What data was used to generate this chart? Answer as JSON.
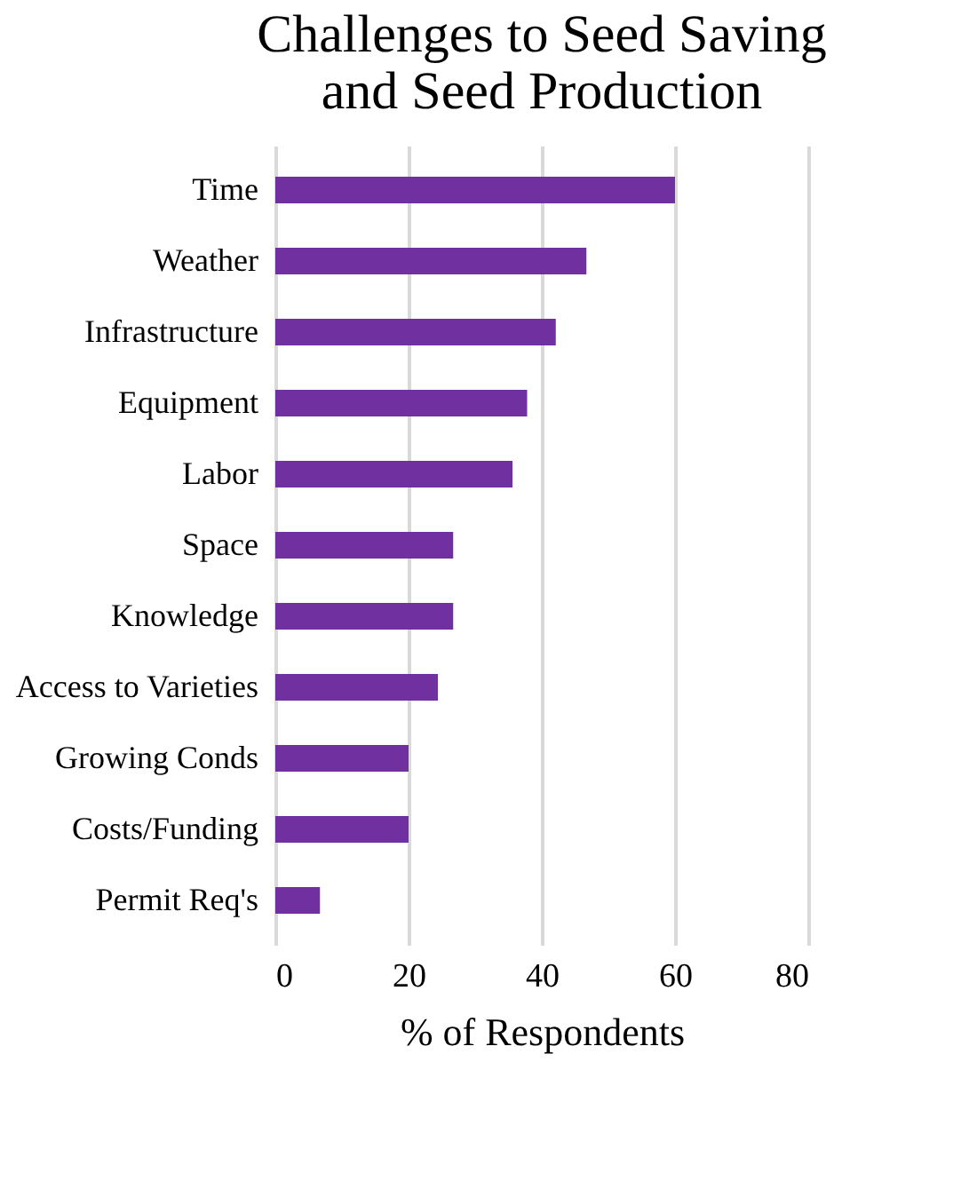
{
  "chart_data": {
    "type": "bar",
    "orientation": "horizontal",
    "title": [
      "Challenges to Seed Saving",
      "and Seed Production"
    ],
    "xlabel": "% of Respondents",
    "categories": [
      "Time",
      "Weather",
      "Infrastructure",
      "Equipment",
      "Labor",
      "Space",
      "Knowledge",
      "Access to Varieties",
      "Growing Conds",
      "Costs/Funding",
      "Permit Req's"
    ],
    "values": [
      60,
      46.7,
      42.1,
      37.8,
      35.6,
      26.7,
      26.7,
      24.4,
      20,
      20,
      6.7
    ],
    "color": "#7030a0",
    "xlim": [
      0,
      80
    ],
    "xticks": [
      0,
      20,
      40,
      60,
      80
    ],
    "grid": "x"
  }
}
